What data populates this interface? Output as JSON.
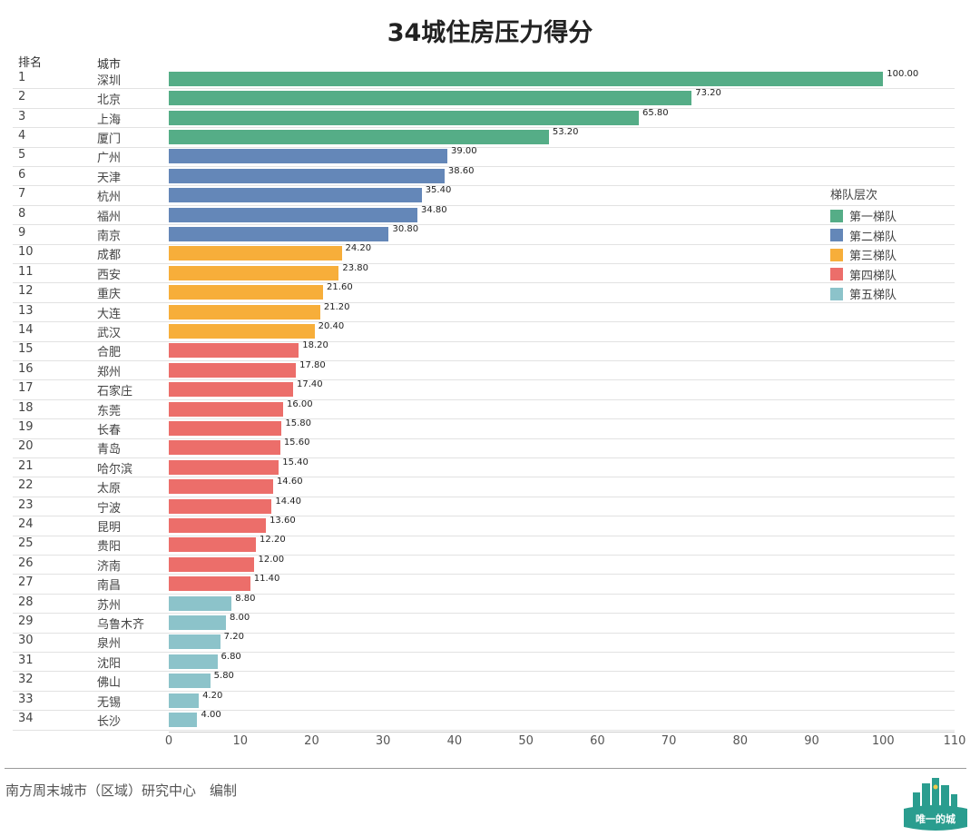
{
  "chart_data": {
    "type": "bar",
    "orientation": "horizontal",
    "title": "34城住房压力得分",
    "column_headers": {
      "rank": "排名",
      "city": "城市"
    },
    "xlim": [
      0,
      110
    ],
    "xticks": [
      0,
      10,
      20,
      30,
      40,
      50,
      60,
      70,
      80,
      90,
      100,
      110
    ],
    "value_labels": [
      "100.00",
      "73.20",
      "65.80",
      "53.20",
      "39.00",
      "38.60",
      "35.40",
      "34.80",
      "30.80",
      "24.20",
      "23.80",
      "21.60",
      "21.20",
      "20.40",
      "18.20",
      "17.80",
      "17.40",
      "16.00",
      "15.80",
      "15.60",
      "15.40",
      "14.60",
      "14.40",
      "13.60",
      "12.20",
      "12.00",
      "11.40",
      "8.80",
      "8.00",
      "7.20",
      "6.80",
      "5.80",
      "4.20",
      "4.00"
    ],
    "legend_title": "梯队层次",
    "legend_position": "right",
    "tiers": [
      {
        "name": "第一梯队",
        "color": "#55ad87"
      },
      {
        "name": "第二梯队",
        "color": "#6487b8"
      },
      {
        "name": "第三梯队",
        "color": "#f7ae3a"
      },
      {
        "name": "第四梯队",
        "color": "#ec6e6a"
      },
      {
        "name": "第五梯队",
        "color": "#8cc3ca"
      }
    ],
    "rows": [
      {
        "rank": "1",
        "city": "深圳",
        "value": 100.0,
        "tier": 0
      },
      {
        "rank": "2",
        "city": "北京",
        "value": 73.2,
        "tier": 0
      },
      {
        "rank": "3",
        "city": "上海",
        "value": 65.8,
        "tier": 0
      },
      {
        "rank": "4",
        "city": "厦门",
        "value": 53.2,
        "tier": 0
      },
      {
        "rank": "5",
        "city": "广州",
        "value": 39.0,
        "tier": 1
      },
      {
        "rank": "6",
        "city": "天津",
        "value": 38.6,
        "tier": 1
      },
      {
        "rank": "7",
        "city": "杭州",
        "value": 35.4,
        "tier": 1
      },
      {
        "rank": "8",
        "city": "福州",
        "value": 34.8,
        "tier": 1
      },
      {
        "rank": "9",
        "city": "南京",
        "value": 30.8,
        "tier": 1
      },
      {
        "rank": "10",
        "city": "成都",
        "value": 24.2,
        "tier": 2
      },
      {
        "rank": "11",
        "city": "西安",
        "value": 23.8,
        "tier": 2
      },
      {
        "rank": "12",
        "city": "重庆",
        "value": 21.6,
        "tier": 2
      },
      {
        "rank": "13",
        "city": "大连",
        "value": 21.2,
        "tier": 2
      },
      {
        "rank": "14",
        "city": "武汉",
        "value": 20.4,
        "tier": 2
      },
      {
        "rank": "15",
        "city": "合肥",
        "value": 18.2,
        "tier": 3
      },
      {
        "rank": "16",
        "city": "郑州",
        "value": 17.8,
        "tier": 3
      },
      {
        "rank": "17",
        "city": "石家庄",
        "value": 17.4,
        "tier": 3
      },
      {
        "rank": "18",
        "city": "东莞",
        "value": 16.0,
        "tier": 3
      },
      {
        "rank": "19",
        "city": "长春",
        "value": 15.8,
        "tier": 3
      },
      {
        "rank": "20",
        "city": "青岛",
        "value": 15.6,
        "tier": 3
      },
      {
        "rank": "21",
        "city": "哈尔滨",
        "value": 15.4,
        "tier": 3
      },
      {
        "rank": "22",
        "city": "太原",
        "value": 14.6,
        "tier": 3
      },
      {
        "rank": "23",
        "city": "宁波",
        "value": 14.4,
        "tier": 3
      },
      {
        "rank": "24",
        "city": "昆明",
        "value": 13.6,
        "tier": 3
      },
      {
        "rank": "25",
        "city": "贵阳",
        "value": 12.2,
        "tier": 3
      },
      {
        "rank": "26",
        "city": "济南",
        "value": 12.0,
        "tier": 3
      },
      {
        "rank": "27",
        "city": "南昌",
        "value": 11.4,
        "tier": 3
      },
      {
        "rank": "28",
        "city": "苏州",
        "value": 8.8,
        "tier": 4
      },
      {
        "rank": "29",
        "city": "乌鲁木齐",
        "value": 8.0,
        "tier": 4
      },
      {
        "rank": "30",
        "city": "泉州",
        "value": 7.2,
        "tier": 4
      },
      {
        "rank": "31",
        "city": "沈阳",
        "value": 6.8,
        "tier": 4
      },
      {
        "rank": "32",
        "city": "佛山",
        "value": 5.8,
        "tier": 4
      },
      {
        "rank": "33",
        "city": "无锡",
        "value": 4.2,
        "tier": 4
      },
      {
        "rank": "34",
        "city": "长沙",
        "value": 4.0,
        "tier": 4
      }
    ]
  },
  "footer": {
    "credit": "南方周末城市（区域）研究中心　编制"
  },
  "logo": {
    "text": "唯一的城",
    "color": "#2a9d8f"
  }
}
